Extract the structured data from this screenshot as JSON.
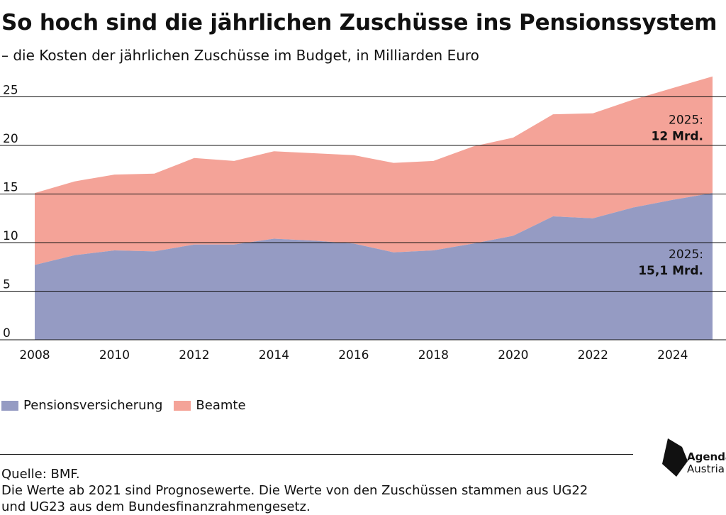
{
  "header": {
    "title": "So hoch sind die jährlichen Zuschüsse ins Pensionssystem",
    "subtitle": "– die Kosten der jährlichen Zuschüsse im Budget, in Milliarden Euro"
  },
  "colors": {
    "pensionsversicherung": "#959bc3",
    "beamte": "#f4a398",
    "gridline": "#111111",
    "text": "#111111"
  },
  "chart_data": {
    "type": "area",
    "stacked": true,
    "title": "So hoch sind die jährlichen Zuschüsse ins Pensionssystem",
    "subtitle": "– die Kosten der jährlichen Zuschüsse im Budget, in Milliarden Euro",
    "xlabel": "",
    "ylabel": "",
    "x": [
      2008,
      2009,
      2010,
      2011,
      2012,
      2013,
      2014,
      2015,
      2016,
      2017,
      2018,
      2019,
      2020,
      2021,
      2022,
      2023,
      2024,
      2025
    ],
    "xlim": [
      2008,
      2025
    ],
    "ylim": [
      0,
      27
    ],
    "x_ticks": [
      "2008",
      "2010",
      "2012",
      "2014",
      "2016",
      "2018",
      "2020",
      "2022",
      "2024"
    ],
    "y_ticks": [
      "0",
      "5",
      "10",
      "15",
      "20",
      "25"
    ],
    "grid": true,
    "legend_position": "bottom-left",
    "series": [
      {
        "name": "Pensionsversicherung",
        "color": "#959bc3",
        "values": [
          7.7,
          8.7,
          9.2,
          9.1,
          9.8,
          9.8,
          10.4,
          10.2,
          9.9,
          9.0,
          9.2,
          9.9,
          10.7,
          12.7,
          12.5,
          13.6,
          14.4,
          15.1
        ]
      },
      {
        "name": "Beamte",
        "color": "#f4a398",
        "values": [
          7.4,
          7.6,
          7.8,
          8.0,
          8.9,
          8.6,
          9.0,
          9.0,
          9.1,
          9.2,
          9.2,
          10.0,
          10.1,
          10.5,
          10.8,
          11.1,
          11.5,
          12.0
        ]
      }
    ],
    "annotations": [
      {
        "series": "Beamte",
        "year_label": "2025:",
        "value_label": "12 Mrd."
      },
      {
        "series": "Pensionsversicherung",
        "year_label": "2025:",
        "value_label": "15,1 Mrd."
      }
    ]
  },
  "footer": {
    "source": "Quelle: BMF.",
    "note_line1": "Die Werte ab 2021 sind Prognosewerte. Die Werte von den Zuschüssen stammen aus UG22",
    "note_line2": "und UG23 aus dem Bundesfinanzrahmengesetz."
  },
  "logo": {
    "icon": "agenda-austria-logo-icon",
    "line1": "Agenda",
    "line2": "Austria"
  }
}
